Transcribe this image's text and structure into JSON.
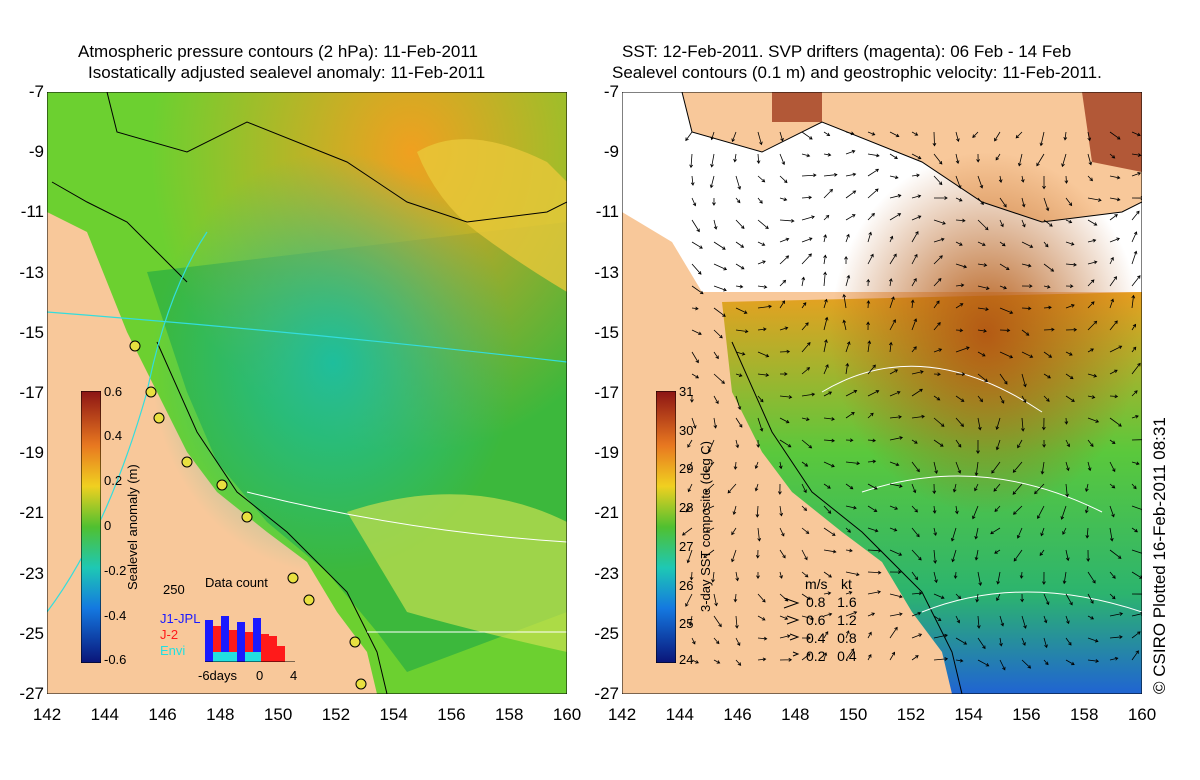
{
  "left_panel": {
    "title_line1": "Atmospheric pressure contours (2 hPa): 11-Feb-2011",
    "title_line2": "Isostatically adjusted sealevel anomaly: 11-Feb-2011",
    "colorbar_label": "Sealevel anomaly (m)",
    "colorbar_ticks": [
      "0.6",
      "0.4",
      "0.2",
      "0",
      "-0.2",
      "-0.4",
      "-0.6"
    ],
    "data_count_title": "Data count",
    "data_count_max": "250",
    "missions": [
      {
        "name": "J1-JPL",
        "color": "#1a1aff"
      },
      {
        "name": "J-2",
        "color": "#ff1a1a"
      },
      {
        "name": "Envi",
        "color": "#22e0e0"
      }
    ],
    "days_axis": [
      "-6days",
      "0",
      "4"
    ]
  },
  "right_panel": {
    "title_line1": "SST: 12-Feb-2011. SVP drifters (magenta): 06 Feb - 14 Feb",
    "title_line2": "Sealevel contours (0.1 m) and geostrophic velocity: 11-Feb-2011.",
    "colorbar_label": "3-day SST composite (deg C)",
    "colorbar_ticks": [
      "31",
      "30",
      "29",
      "28",
      "27",
      "26",
      "25",
      "24"
    ],
    "velocity_legend": {
      "units": [
        "m/s",
        "kt"
      ],
      "rows": [
        [
          "0.8",
          "1.6"
        ],
        [
          "0.6",
          "1.2"
        ],
        [
          "0.4",
          "0.8"
        ],
        [
          "0.2",
          "0.4"
        ]
      ]
    }
  },
  "y_axis_labels": [
    "-7",
    "-9",
    "-11",
    "-13",
    "-15",
    "-17",
    "-19",
    "-21",
    "-23",
    "-25",
    "-27"
  ],
  "x_axis_labels": [
    "142",
    "144",
    "146",
    "148",
    "150",
    "152",
    "154",
    "156",
    "158",
    "160"
  ],
  "credit": "© CSIRO Plotted 16-Feb-2011 08:31",
  "colors": {
    "land": "#f8c89a",
    "sealevel_low": "#1e9c3c",
    "sealevel_high": "#f0b418",
    "sst_warm": "#b45a14",
    "sst_cool": "#1e64d2",
    "coast": "#000000",
    "contour": "#33dddd"
  }
}
